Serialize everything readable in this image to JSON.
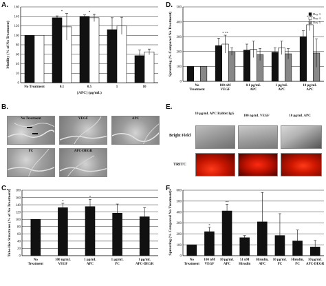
{
  "panels": {
    "a": "A.",
    "b": "B.",
    "c": "C.",
    "d": "D.",
    "e": "E.",
    "f": "F."
  },
  "panel_b": {
    "tiles": [
      "No Treatment",
      "VEGF",
      "APC",
      "PC",
      "APC-DEGR"
    ]
  },
  "panel_e": {
    "columns": [
      "10 µg/mL APC Rabbit IgG",
      "100 ng/mL VEGF",
      "10 µg/mL APC"
    ],
    "rows": [
      "Bright Field",
      "TRITC"
    ]
  },
  "chart_data": [
    {
      "id": "A",
      "type": "bar",
      "categories": [
        "No Treatment",
        "0.1",
        "0.5",
        "1",
        "10"
      ],
      "series": [
        {
          "values": [
            100,
            137,
            140,
            112,
            57
          ],
          "errors": [
            0,
            4,
            3,
            25,
            12
          ],
          "color": "#111111"
        },
        {
          "values": [
            100,
            118,
            137,
            120,
            65
          ],
          "errors": [
            0,
            28,
            8,
            18,
            6
          ],
          "color": "#ffffff"
        }
      ],
      "significance": [
        "",
        "*",
        "*",
        "",
        ""
      ],
      "xlabel": "[APC] (µg/mL)",
      "ylabel": "Motility (% of No Treatment)",
      "ylim": [
        0,
        160
      ],
      "yticks": [
        0,
        20,
        40,
        60,
        80,
        100,
        120,
        140,
        160
      ],
      "grid": true
    },
    {
      "id": "D",
      "type": "bar",
      "categories": [
        "No Treatment",
        "100 nM VEGF",
        "0.1 µg/mL APC",
        "1 µg/mL APC",
        "10 µg/mL APC"
      ],
      "series": [
        {
          "name": "Day 3",
          "values": [
            100,
            240,
            210,
            195,
            300
          ],
          "errors": [
            0,
            50,
            40,
            30,
            40
          ],
          "color": "#111111"
        },
        {
          "name": "Day 4",
          "values": [
            100,
            250,
            215,
            225,
            380
          ],
          "errors": [
            0,
            60,
            55,
            45,
            40
          ],
          "color": "#ffffff"
        },
        {
          "name": "Day 5",
          "values": [
            100,
            200,
            180,
            185,
            190
          ],
          "errors": [
            0,
            25,
            40,
            35,
            95
          ],
          "color": "#888888"
        }
      ],
      "significance": [
        "",
        "*  **",
        "",
        "",
        "*  **"
      ],
      "ylabel": "Sprouting (% Compared No Treatment)",
      "ylim": [
        0,
        500
      ],
      "yticks": [
        0,
        100,
        200,
        300,
        400,
        500
      ],
      "legend": "top-right",
      "grid": true
    },
    {
      "id": "C",
      "type": "bar",
      "categories": [
        "No Treatment",
        "100 ng/mL VEGF",
        "1 µg/mL APC",
        "1 µg/mL PC",
        "1 µg/mL APC-DEGR"
      ],
      "series": [
        {
          "values": [
            100,
            132,
            135,
            117,
            107
          ],
          "errors": [
            0,
            12,
            20,
            25,
            25
          ],
          "color": "#111111"
        }
      ],
      "significance": [
        "",
        "*",
        "*",
        "",
        ""
      ],
      "ylabel": "Tube-like Structures (% of No Treatment)",
      "ylim": [
        0,
        180
      ],
      "yticks": [
        0,
        20,
        40,
        60,
        80,
        100,
        120,
        140,
        160,
        180
      ],
      "grid": true
    },
    {
      "id": "F",
      "type": "bar",
      "categories": [
        "No Treatment",
        "100 nM VEGF",
        "10 µg/mL APC",
        "51 nM Hirudin",
        "Hirudin, APC",
        "10 µg/mL PC",
        "Hirudin, PC",
        "10 µg/mL APC-DEGR"
      ],
      "series": [
        {
          "values": [
            100,
            220,
            410,
            165,
            310,
            185,
            135,
            80
          ],
          "errors": [
            0,
            40,
            60,
            20,
            270,
            200,
            100,
            60
          ],
          "color": "#111111"
        }
      ],
      "significance": [
        "",
        "*",
        "**",
        "",
        "",
        "",
        "",
        ""
      ],
      "ylabel": "Sprouting (% Compared No Treatment)",
      "ylim": [
        0,
        600
      ],
      "yticks": [
        0,
        100,
        200,
        300,
        400,
        500,
        600
      ],
      "grid": true
    }
  ]
}
